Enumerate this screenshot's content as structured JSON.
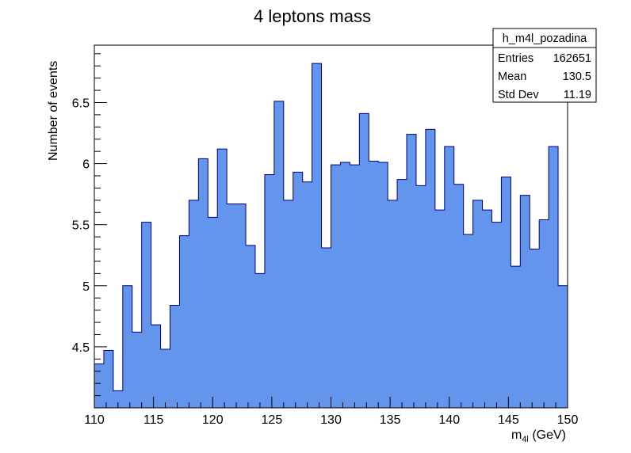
{
  "chart_data": {
    "type": "bar",
    "title": "4 leptons mass",
    "xlabel_main": "m",
    "xlabel_sub": "4l",
    "xlabel_unit": " (GeV)",
    "ylabel": "Number of events",
    "xlim": [
      110,
      150
    ],
    "ylim": [
      4.0,
      6.97
    ],
    "bin_width": 0.8,
    "x_ticks": [
      110,
      115,
      120,
      125,
      130,
      135,
      140,
      145,
      150
    ],
    "x_tick_labels": [
      "110",
      "115",
      "120",
      "125",
      "130",
      "135",
      "140",
      "145",
      "150"
    ],
    "y_ticks": [
      4.5,
      5,
      5.5,
      6,
      6.5
    ],
    "y_tick_labels": [
      "4.5",
      "5",
      "5.5",
      "6",
      "6.5"
    ],
    "values": [
      4.36,
      4.47,
      4.14,
      5.0,
      4.62,
      5.52,
      4.68,
      4.48,
      4.84,
      5.41,
      5.7,
      6.04,
      5.56,
      6.12,
      5.67,
      5.67,
      5.33,
      5.1,
      5.91,
      6.51,
      5.7,
      5.93,
      5.85,
      6.82,
      5.31,
      5.99,
      6.01,
      5.99,
      6.41,
      6.02,
      6.01,
      5.7,
      5.87,
      6.24,
      5.82,
      6.28,
      5.62,
      6.14,
      5.83,
      5.42,
      5.7,
      5.62,
      5.52,
      5.89,
      5.16,
      5.74,
      5.3,
      5.54,
      6.14,
      5.0
    ],
    "fill_color": "#6495ed",
    "line_color": "#000080",
    "stats_box": {
      "name": "h_m4l_pozadina",
      "rows": [
        {
          "label": "Entries",
          "value": "162651"
        },
        {
          "label": "Mean",
          "value": "130.5"
        },
        {
          "label": "Std Dev",
          "value": "11.19"
        }
      ]
    }
  }
}
